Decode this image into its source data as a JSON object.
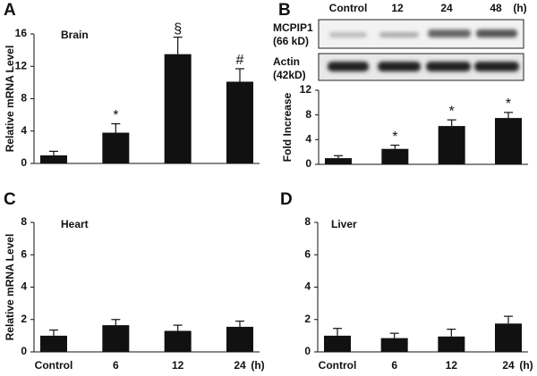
{
  "chart_data": [
    {
      "type": "bar",
      "panel": "A",
      "title": "Brain",
      "y_label": "Relative mRNA Level",
      "values": [
        1.0,
        3.8,
        13.5,
        10.1
      ],
      "errors": [
        0.5,
        1.1,
        2.1,
        1.6
      ],
      "markers": [
        null,
        "*",
        "§",
        "#"
      ],
      "color": "#111111",
      "ylim": [
        0,
        16
      ],
      "yticks": [
        0,
        4,
        8,
        12,
        16
      ]
    },
    {
      "type": "bar",
      "panel": "B",
      "blot": {
        "lanes": [
          "Control",
          "12",
          "24",
          "48"
        ],
        "unit": "(h)",
        "rows": [
          {
            "label": "MCPIP1",
            "size": "(66 kD)"
          },
          {
            "label": "Actin",
            "size": "(42kD)"
          }
        ]
      },
      "y_label": "Fold Increase",
      "values": [
        1.0,
        2.5,
        6.2,
        7.5
      ],
      "errors": [
        0.4,
        0.6,
        1.0,
        0.9
      ],
      "markers": [
        null,
        "*",
        "*",
        "*"
      ],
      "color": "#111111",
      "ylim": [
        0,
        12
      ],
      "yticks": [
        0,
        4,
        8,
        12
      ]
    },
    {
      "type": "bar",
      "panel": "C",
      "title": "Heart",
      "y_label": "Relative mRNA Level",
      "categories": [
        "Control",
        "6",
        "12",
        "24"
      ],
      "unit": "(h)",
      "values": [
        1.0,
        1.65,
        1.3,
        1.55
      ],
      "errors": [
        0.35,
        0.35,
        0.35,
        0.35
      ],
      "color": "#111111",
      "ylim": [
        0,
        8
      ],
      "yticks": [
        0,
        2,
        4,
        6,
        8
      ]
    },
    {
      "type": "bar",
      "panel": "D",
      "title": "Liver",
      "categories": [
        "Control",
        "6",
        "12",
        "24"
      ],
      "unit": "(h)",
      "values": [
        1.0,
        0.85,
        0.95,
        1.75
      ],
      "errors": [
        0.45,
        0.3,
        0.45,
        0.45
      ],
      "color": "#111111",
      "ylim": [
        0,
        8
      ],
      "yticks": [
        0,
        2,
        4,
        6,
        8
      ]
    }
  ]
}
